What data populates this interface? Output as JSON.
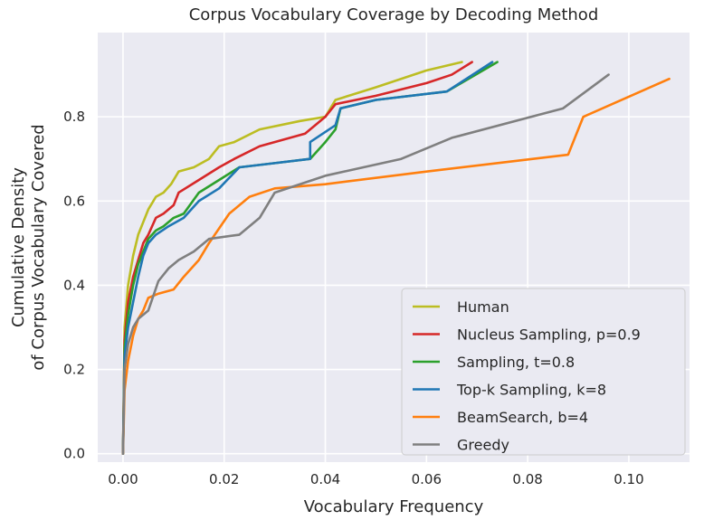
{
  "chart_data": {
    "type": "line",
    "title": "Corpus Vocabulary Coverage by Decoding Method",
    "xlabel": "Vocabulary Frequency",
    "ylabel_lines": [
      "Cumulative Density",
      "of Corpus Vocabulary Covered"
    ],
    "xlim": [
      -0.005,
      0.112
    ],
    "ylim": [
      -0.02,
      1.0
    ],
    "xticks": [
      0.0,
      0.02,
      0.04,
      0.06,
      0.08,
      0.1
    ],
    "xtick_labels": [
      "0.00",
      "0.02",
      "0.04",
      "0.06",
      "0.08",
      "0.10"
    ],
    "yticks": [
      0.0,
      0.2,
      0.4,
      0.6,
      0.8
    ],
    "ytick_labels": [
      "0.0",
      "0.2",
      "0.4",
      "0.6",
      "0.8"
    ],
    "grid": true,
    "legend_position": "bottom-right",
    "series": [
      {
        "name": "Human",
        "color": "#bcbd22",
        "points": [
          [
            0,
            0
          ],
          [
            0.0003,
            0.3
          ],
          [
            0.001,
            0.4
          ],
          [
            0.002,
            0.47
          ],
          [
            0.003,
            0.52
          ],
          [
            0.004,
            0.55
          ],
          [
            0.005,
            0.58
          ],
          [
            0.0065,
            0.61
          ],
          [
            0.008,
            0.62
          ],
          [
            0.0095,
            0.64
          ],
          [
            0.011,
            0.67
          ],
          [
            0.014,
            0.68
          ],
          [
            0.017,
            0.7
          ],
          [
            0.019,
            0.73
          ],
          [
            0.022,
            0.74
          ],
          [
            0.027,
            0.77
          ],
          [
            0.035,
            0.79
          ],
          [
            0.04,
            0.8
          ],
          [
            0.042,
            0.84
          ],
          [
            0.05,
            0.87
          ],
          [
            0.06,
            0.91
          ],
          [
            0.067,
            0.93
          ]
        ]
      },
      {
        "name": "Nucleus Sampling, p=0.9",
        "color": "#d62728",
        "points": [
          [
            0,
            0
          ],
          [
            0.0003,
            0.27
          ],
          [
            0.001,
            0.36
          ],
          [
            0.002,
            0.42
          ],
          [
            0.003,
            0.46
          ],
          [
            0.004,
            0.5
          ],
          [
            0.005,
            0.52
          ],
          [
            0.0065,
            0.56
          ],
          [
            0.008,
            0.57
          ],
          [
            0.01,
            0.59
          ],
          [
            0.011,
            0.62
          ],
          [
            0.015,
            0.65
          ],
          [
            0.019,
            0.68
          ],
          [
            0.022,
            0.7
          ],
          [
            0.027,
            0.73
          ],
          [
            0.036,
            0.76
          ],
          [
            0.04,
            0.8
          ],
          [
            0.042,
            0.83
          ],
          [
            0.05,
            0.85
          ],
          [
            0.06,
            0.88
          ],
          [
            0.065,
            0.9
          ],
          [
            0.069,
            0.93
          ]
        ]
      },
      {
        "name": "Sampling, t=0.8",
        "color": "#2ca02c",
        "points": [
          [
            0,
            0
          ],
          [
            0.0003,
            0.25
          ],
          [
            0.001,
            0.33
          ],
          [
            0.002,
            0.4
          ],
          [
            0.003,
            0.45
          ],
          [
            0.004,
            0.48
          ],
          [
            0.005,
            0.51
          ],
          [
            0.0065,
            0.53
          ],
          [
            0.008,
            0.54
          ],
          [
            0.01,
            0.56
          ],
          [
            0.012,
            0.57
          ],
          [
            0.015,
            0.62
          ],
          [
            0.019,
            0.65
          ],
          [
            0.023,
            0.68
          ],
          [
            0.03,
            0.69
          ],
          [
            0.037,
            0.7
          ],
          [
            0.04,
            0.74
          ],
          [
            0.042,
            0.77
          ],
          [
            0.043,
            0.82
          ],
          [
            0.05,
            0.84
          ],
          [
            0.064,
            0.86
          ],
          [
            0.074,
            0.93
          ]
        ]
      },
      {
        "name": "Top-k Sampling, k=8",
        "color": "#1f77b4",
        "points": [
          [
            0,
            0
          ],
          [
            0.0003,
            0.23
          ],
          [
            0.001,
            0.3
          ],
          [
            0.002,
            0.36
          ],
          [
            0.003,
            0.42
          ],
          [
            0.004,
            0.47
          ],
          [
            0.005,
            0.5
          ],
          [
            0.0065,
            0.52
          ],
          [
            0.009,
            0.54
          ],
          [
            0.012,
            0.56
          ],
          [
            0.015,
            0.6
          ],
          [
            0.019,
            0.63
          ],
          [
            0.023,
            0.68
          ],
          [
            0.03,
            0.69
          ],
          [
            0.037,
            0.7
          ],
          [
            0.037,
            0.74
          ],
          [
            0.042,
            0.78
          ],
          [
            0.043,
            0.82
          ],
          [
            0.05,
            0.84
          ],
          [
            0.064,
            0.86
          ],
          [
            0.073,
            0.93
          ]
        ]
      },
      {
        "name": "BeamSearch, b=4",
        "color": "#ff7f0e",
        "points": [
          [
            0,
            0
          ],
          [
            0.0003,
            0.15
          ],
          [
            0.001,
            0.22
          ],
          [
            0.002,
            0.28
          ],
          [
            0.003,
            0.32
          ],
          [
            0.004,
            0.34
          ],
          [
            0.005,
            0.37
          ],
          [
            0.007,
            0.38
          ],
          [
            0.01,
            0.39
          ],
          [
            0.012,
            0.42
          ],
          [
            0.015,
            0.46
          ],
          [
            0.017,
            0.5
          ],
          [
            0.021,
            0.57
          ],
          [
            0.025,
            0.61
          ],
          [
            0.03,
            0.63
          ],
          [
            0.04,
            0.64
          ],
          [
            0.06,
            0.67
          ],
          [
            0.088,
            0.71
          ],
          [
            0.091,
            0.8
          ],
          [
            0.108,
            0.89
          ]
        ]
      },
      {
        "name": "Greedy",
        "color": "#7f7f7f",
        "points": [
          [
            0,
            0
          ],
          [
            0.0003,
            0.2
          ],
          [
            0.001,
            0.26
          ],
          [
            0.002,
            0.3
          ],
          [
            0.003,
            0.32
          ],
          [
            0.005,
            0.34
          ],
          [
            0.007,
            0.41
          ],
          [
            0.009,
            0.44
          ],
          [
            0.011,
            0.46
          ],
          [
            0.014,
            0.48
          ],
          [
            0.017,
            0.51
          ],
          [
            0.023,
            0.52
          ],
          [
            0.027,
            0.56
          ],
          [
            0.03,
            0.62
          ],
          [
            0.04,
            0.66
          ],
          [
            0.055,
            0.7
          ],
          [
            0.065,
            0.75
          ],
          [
            0.087,
            0.82
          ],
          [
            0.096,
            0.9
          ]
        ]
      }
    ]
  }
}
